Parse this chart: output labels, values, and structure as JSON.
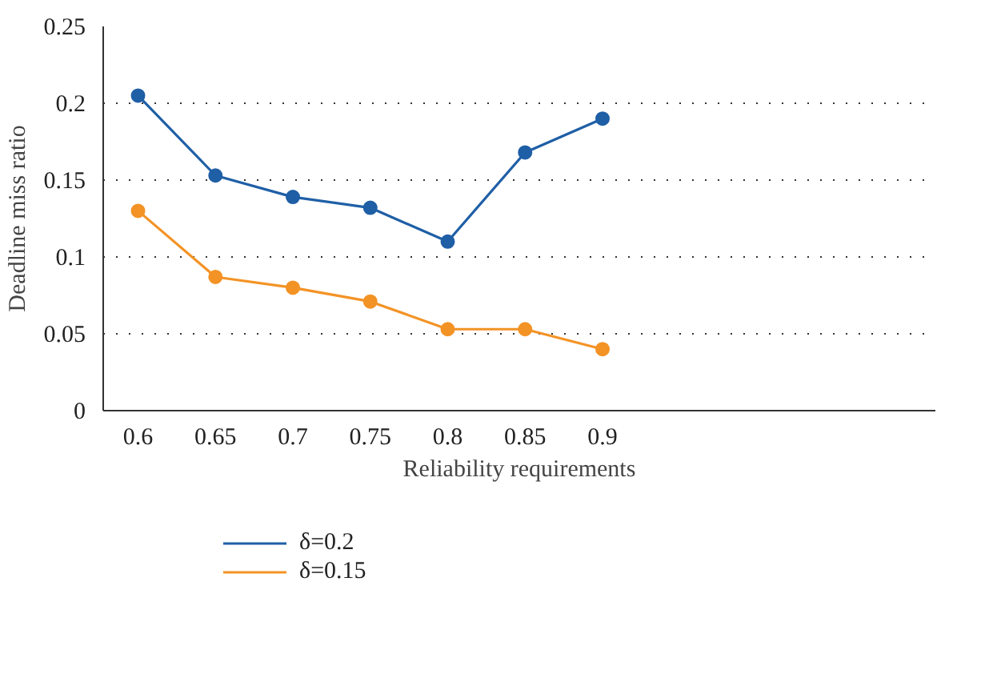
{
  "chart_data": {
    "type": "line",
    "xlabel": "Reliability requirements",
    "ylabel": "Deadline miss ratio",
    "categories": [
      "0.6",
      "0.65",
      "0.7",
      "0.75",
      "0.8",
      "0.85",
      "0.9"
    ],
    "series": [
      {
        "name": "δ=0.2",
        "color": "#1f5fa6",
        "values": [
          0.205,
          0.153,
          0.139,
          0.132,
          0.11,
          0.168,
          0.19
        ]
      },
      {
        "name": "δ=0.15",
        "color": "#f39325",
        "values": [
          0.13,
          0.087,
          0.08,
          0.071,
          0.053,
          0.053,
          0.04
        ]
      }
    ],
    "ylim": [
      0,
      0.25
    ],
    "yticks": [
      0,
      0.05,
      0.1,
      0.15,
      0.2,
      0.25
    ],
    "grid": "y",
    "legend": "bottom left",
    "marker": "circle",
    "line_style": "solid"
  }
}
